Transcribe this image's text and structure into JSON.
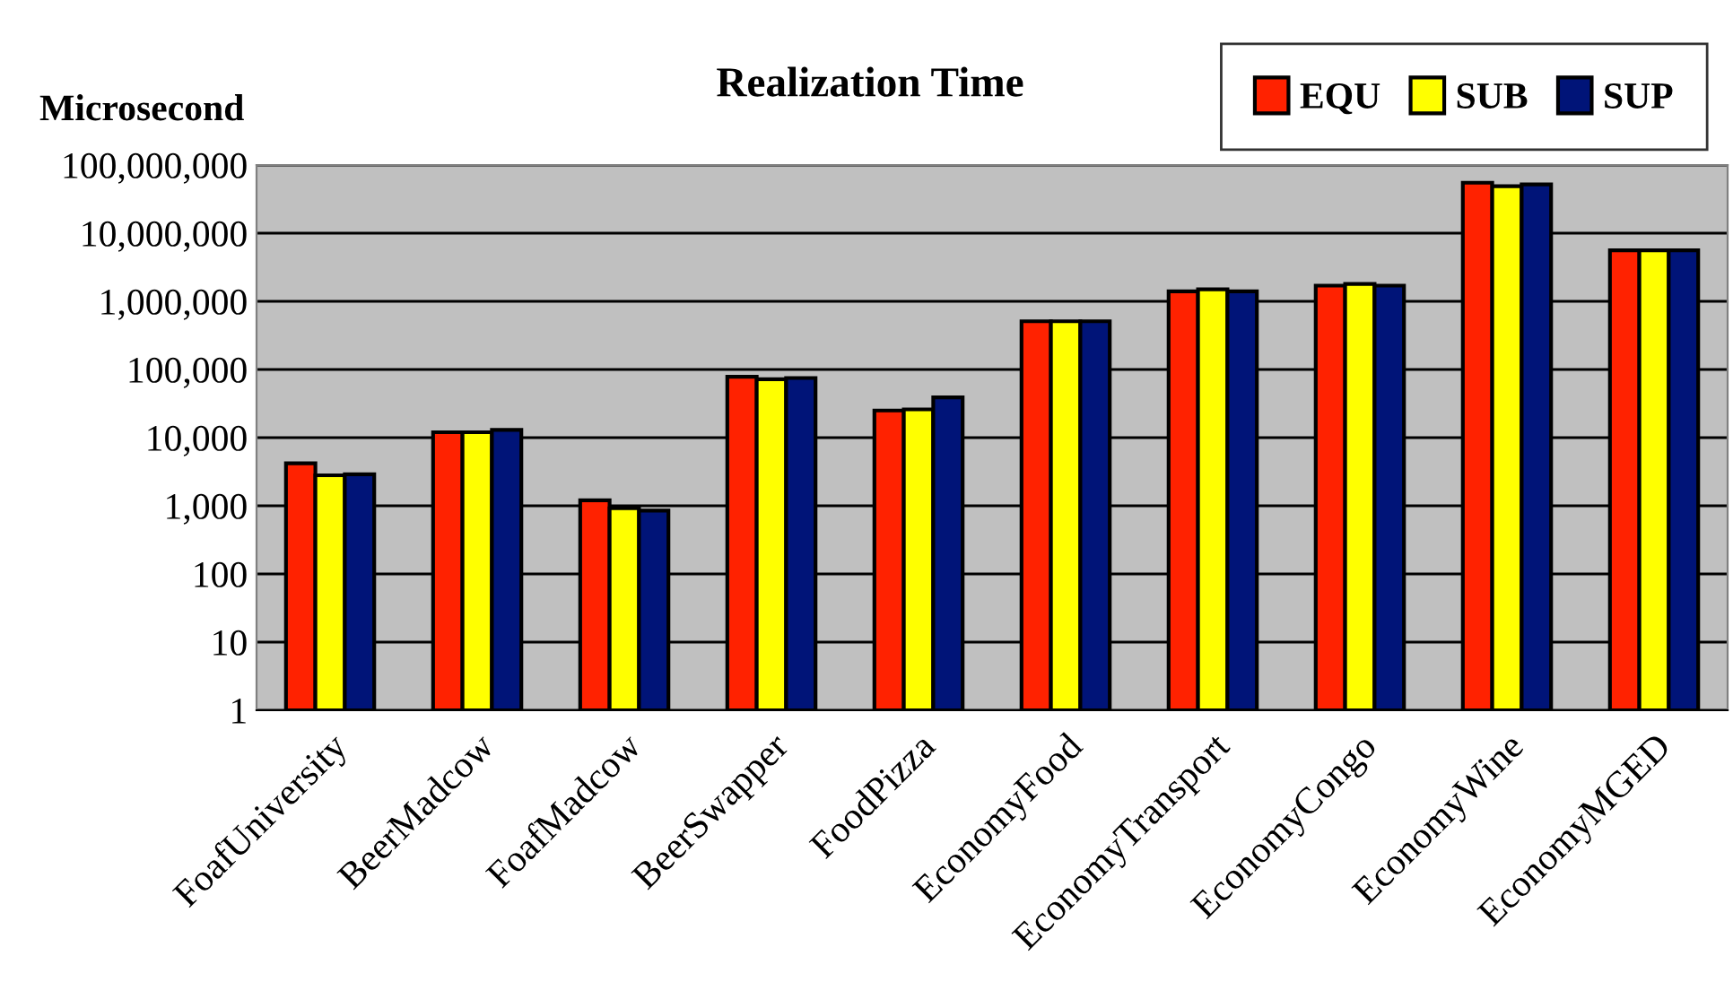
{
  "chart_data": {
    "type": "bar",
    "title": "Realization Time",
    "ylabel": "Microsecond",
    "categories": [
      "FoafUniversity",
      "BeerMadcow",
      "FoafMadcow",
      "BeerSwapper",
      "FoodPizza",
      "EconomyFood",
      "EconomyTransport",
      "EconomyCongo",
      "EconomyWine",
      "EconomyMGED"
    ],
    "series": [
      {
        "name": "EQU",
        "color": "#ff2200",
        "values": [
          4200,
          12000,
          1200,
          78000,
          25000,
          510000,
          1400000,
          1700000,
          55000000,
          5600000
        ]
      },
      {
        "name": "SUB",
        "color": "#ffff00",
        "values": [
          2800,
          12000,
          920,
          72000,
          26000,
          510000,
          1500000,
          1800000,
          49000000,
          5600000
        ]
      },
      {
        "name": "SUP",
        "color": "#001478",
        "values": [
          2900,
          13000,
          850,
          75000,
          39000,
          510000,
          1400000,
          1700000,
          52000000,
          5600000
        ]
      }
    ],
    "log": "y",
    "ylim": [
      1,
      100000000
    ],
    "yticks": [
      {
        "value": 1,
        "label": "1"
      },
      {
        "value": 10,
        "label": "10"
      },
      {
        "value": 100,
        "label": "100"
      },
      {
        "value": 1000,
        "label": "1,000"
      },
      {
        "value": 10000,
        "label": "10,000"
      },
      {
        "value": 100000,
        "label": "100,000"
      },
      {
        "value": 1000000,
        "label": "1,000,000"
      },
      {
        "value": 10000000,
        "label": "10,000,000"
      },
      {
        "value": 100000000,
        "label": "100,000,000"
      }
    ],
    "grid": "y",
    "legend": "top right"
  }
}
